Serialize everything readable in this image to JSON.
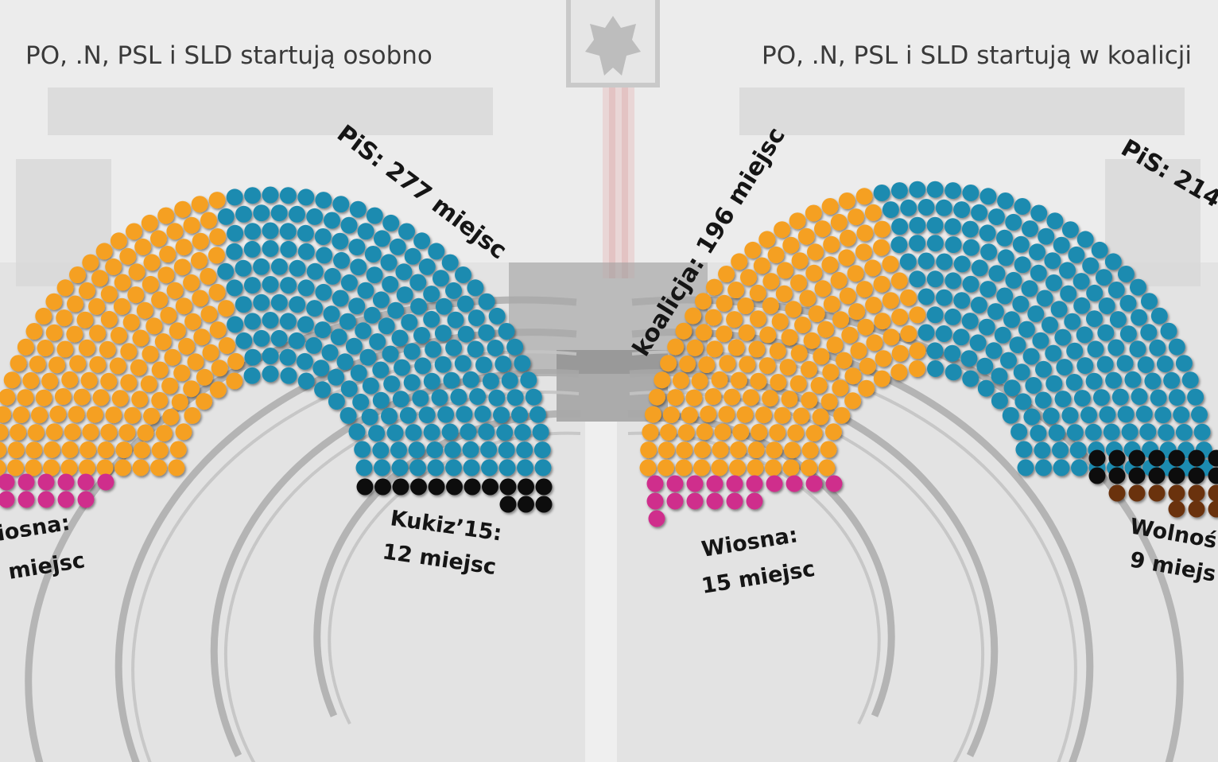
{
  "colors": {
    "opposition": "#f5a022",
    "pis": "#1f8bb0",
    "wiosna": "#cf2e8c",
    "kukiz": "#111111",
    "konfederacja": "#6b3310"
  },
  "chart_data": [
    {
      "type": "parliament",
      "title": "PO, .N, PSL i SLD startują osobno",
      "labels": [
        {
          "text": "PiS: 277 miejsc"
        },
        {
          "text": "Kukiz’15:"
        },
        {
          "text": "12 miejsc"
        },
        {
          "text": "iosna:"
        },
        {
          "text": "miejsc"
        }
      ],
      "parties": [
        {
          "name": "PiS",
          "seats": 277,
          "color_key": "pis"
        },
        {
          "name": "Kukiz’15",
          "seats": 12,
          "color_key": "kukiz"
        },
        {
          "name": "Wiosna",
          "color_key": "wiosna"
        }
      ]
    },
    {
      "type": "parliament",
      "title": "PO, .N, PSL i SLD startują w koalicji",
      "labels": [
        {
          "text": "koalicja: 196 miejsc"
        },
        {
          "text": "PiS: 214 m"
        },
        {
          "text": "Wiosna:"
        },
        {
          "text": "15 miejsc"
        },
        {
          "text": "Wolnoś"
        },
        {
          "text": "9 miejs"
        }
      ],
      "parties": [
        {
          "name": "koalicja",
          "seats": 196,
          "color_key": "opposition"
        },
        {
          "name": "PiS",
          "seats": 214,
          "color_key": "pis"
        },
        {
          "name": "Wiosna",
          "seats": 15,
          "color_key": "wiosna"
        },
        {
          "name": "Wolność",
          "seats": 9,
          "color_key": "konfederacja"
        }
      ]
    }
  ]
}
